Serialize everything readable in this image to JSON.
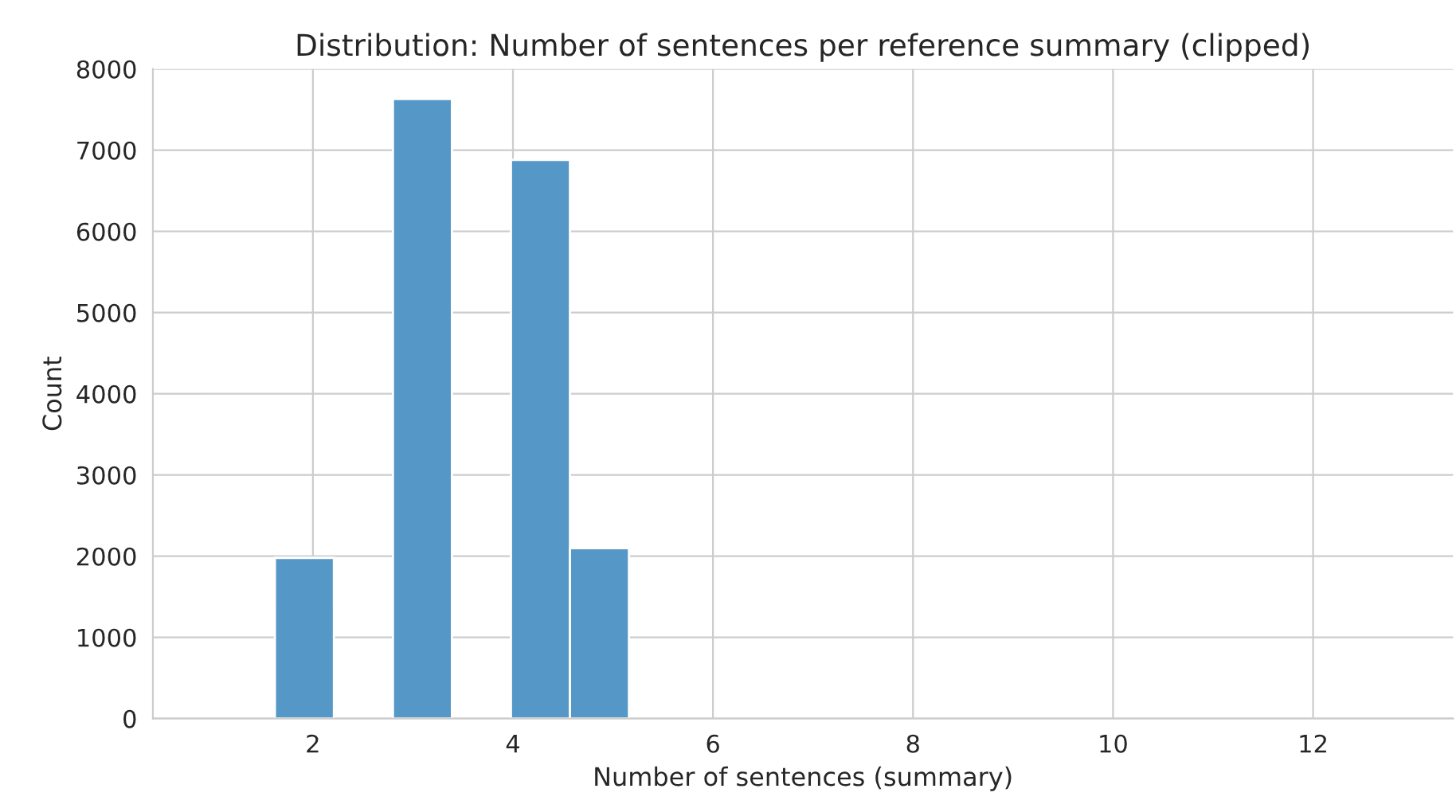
{
  "chart_data": {
    "type": "histogram",
    "title": "Distribution: Number of sentences per reference summary (clipped)",
    "xlabel": "Number of sentences (summary)",
    "ylabel": "Count",
    "bins": [
      1.62,
      2.21,
      2.8,
      3.39,
      3.98,
      4.57,
      5.16
    ],
    "values": [
      1980,
      0,
      7630,
      0,
      6880,
      2100
    ],
    "color": "#5597c6",
    "xlim": [
      0.4,
      13.4
    ],
    "xticks": [
      2,
      4,
      6,
      8,
      10,
      12
    ],
    "ylim": [
      0,
      8000
    ],
    "yticks": [
      0,
      1000,
      2000,
      3000,
      4000,
      5000,
      6000,
      7000,
      8000
    ],
    "grid": true
  }
}
